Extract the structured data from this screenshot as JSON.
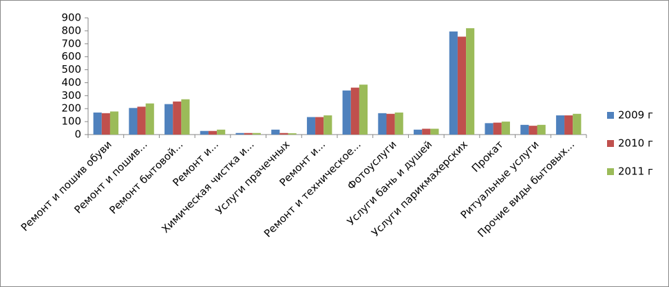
{
  "chart_data": {
    "type": "bar",
    "categories": [
      "Ремонт и пошив обуви",
      "Ремонт и пошив...",
      "Ремонт бытовой...",
      "Ремонт и...",
      "Химическая чистка и...",
      "Услуги прачечных",
      "Ремонт и...",
      "Ремонт и техническое...",
      "Фотоуслуги",
      "Услуги бань и душей",
      "Услуги парикмахерских",
      "Прокат",
      "Ритуальные услуги",
      "Прочие виды бытовых..."
    ],
    "series": [
      {
        "name": "2009 г",
        "color": "#4f81bd",
        "values": [
          170,
          205,
          235,
          28,
          12,
          38,
          135,
          340,
          165,
          38,
          795,
          88,
          75,
          148
        ]
      },
      {
        "name": "2010 г",
        "color": "#c0504d",
        "values": [
          165,
          215,
          255,
          28,
          12,
          12,
          135,
          362,
          160,
          45,
          755,
          92,
          68,
          148
        ]
      },
      {
        "name": "2011 г",
        "color": "#9bbb59",
        "values": [
          178,
          240,
          272,
          38,
          12,
          10,
          148,
          385,
          170,
          45,
          820,
          100,
          75,
          160
        ]
      }
    ],
    "ylim": [
      0,
      900
    ],
    "yticks": [
      0,
      100,
      200,
      300,
      400,
      500,
      600,
      700,
      800,
      900
    ],
    "grid": false,
    "legend_position": "right"
  }
}
